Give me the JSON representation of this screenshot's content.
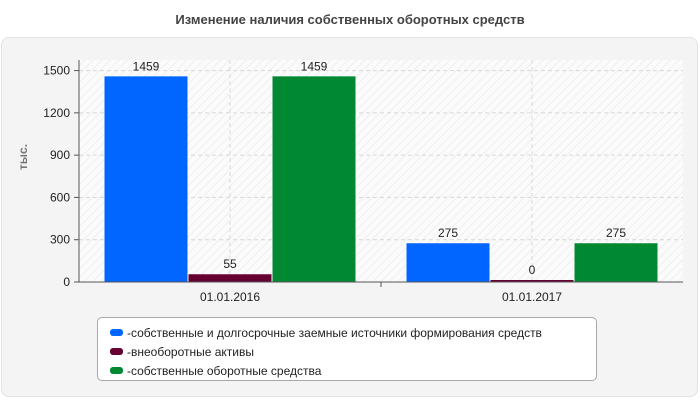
{
  "chart_data": {
    "type": "bar",
    "title": "Изменение наличия собственных оборотных средств",
    "ylabel": "тыс.",
    "categories": [
      "01.01.2016",
      "01.01.2017"
    ],
    "series": [
      {
        "name": "собственные и долгосрочные заемные источники формирования средств",
        "color": "#0066ff",
        "values": [
          1459,
          275
        ]
      },
      {
        "name": "внеоборотные активы",
        "color": "#660033",
        "values": [
          55,
          0
        ]
      },
      {
        "name": "собственные оборотные средства",
        "color": "#008833",
        "values": [
          1459,
          275
        ]
      }
    ],
    "y_ticks": [
      0,
      300,
      600,
      900,
      1200,
      1500
    ],
    "ylim": [
      0,
      1575
    ],
    "grid": true,
    "legend_position": "bottom",
    "legend_prefix": "- "
  }
}
